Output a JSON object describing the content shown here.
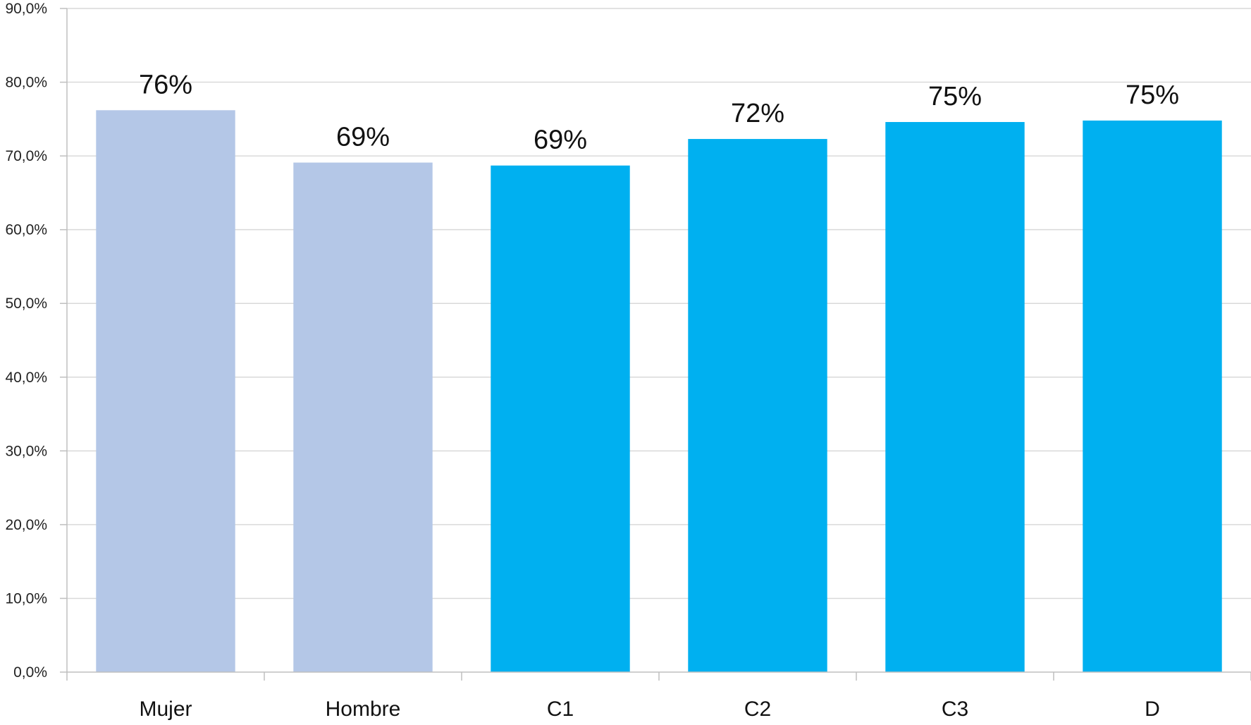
{
  "chart_data": {
    "type": "bar",
    "categories": [
      "Mujer",
      "Hombre",
      "C1",
      "C2",
      "C3",
      "D"
    ],
    "values": [
      76.2,
      69.1,
      68.7,
      72.3,
      74.6,
      74.8
    ],
    "data_labels": [
      "76%",
      "69%",
      "69%",
      "72%",
      "75%",
      "75%"
    ],
    "bar_colors": [
      "#b4c7e7",
      "#b4c7e7",
      "#00b0f0",
      "#00b0f0",
      "#00b0f0",
      "#00b0f0"
    ],
    "title": "",
    "xlabel": "",
    "ylabel": "",
    "ylim": [
      0,
      90
    ],
    "yticks": [
      0,
      10,
      20,
      30,
      40,
      50,
      60,
      70,
      80,
      90
    ],
    "ytick_labels": [
      "0,0%",
      "10,0%",
      "20,0%",
      "30,0%",
      "40,0%",
      "50,0%",
      "60,0%",
      "70,0%",
      "80,0%",
      "90,0%"
    ],
    "grid": true,
    "gridline_color": "#d9d9d9",
    "axis_color": "#bfbfbf",
    "legend": "none"
  }
}
